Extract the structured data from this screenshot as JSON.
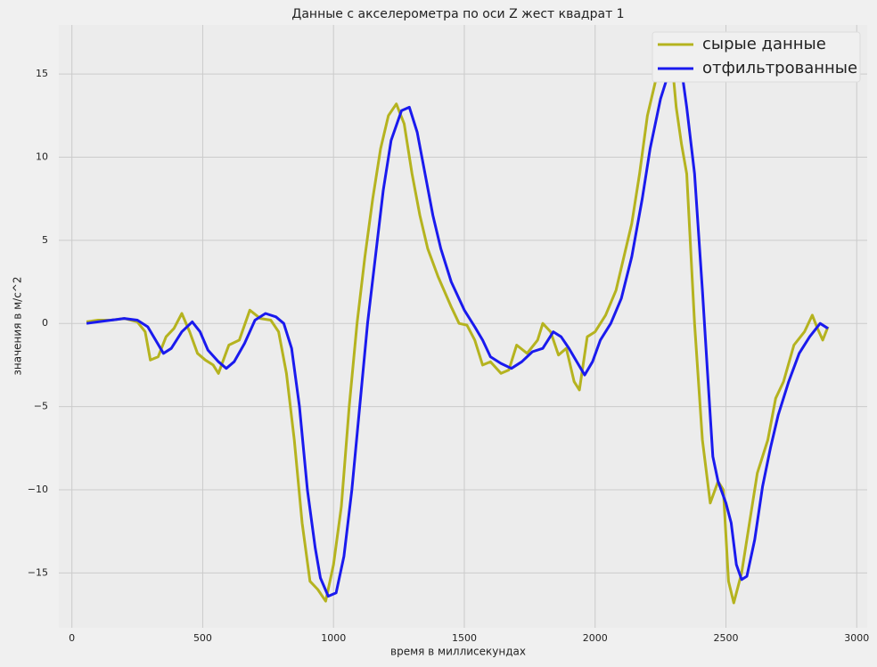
{
  "chart_data": {
    "type": "line",
    "title": "Данные с акселерометра по оси Z жест квадрат 1",
    "x_label": "время в миллисекундах",
    "y_label": "значения в м/с^2",
    "xlim": [
      -50,
      3040
    ],
    "ylim": [
      -18.3,
      17.95
    ],
    "xticks": [
      0,
      500,
      1000,
      1500,
      2000,
      2500,
      3000
    ],
    "yticks": [
      {
        "value": -15,
        "label": "−15"
      },
      {
        "value": -10,
        "label": "−10"
      },
      {
        "value": -5,
        "label": "−5"
      },
      0,
      5,
      10,
      15
    ],
    "grid": true,
    "legend": "upper right",
    "series": [
      {
        "name": "сырые данные",
        "color": "#b5b31f",
        "x": [
          56,
          100,
          150,
          200,
          250,
          280,
          300,
          330,
          360,
          390,
          420,
          450,
          480,
          510,
          540,
          560,
          600,
          640,
          680,
          720,
          760,
          790,
          820,
          850,
          880,
          910,
          940,
          970,
          1000,
          1030,
          1060,
          1090,
          1120,
          1150,
          1180,
          1210,
          1240,
          1270,
          1300,
          1330,
          1360,
          1400,
          1450,
          1480,
          1510,
          1540,
          1570,
          1600,
          1640,
          1670,
          1700,
          1740,
          1780,
          1800,
          1830,
          1860,
          1890,
          1920,
          1940,
          1970,
          2000,
          2040,
          2080,
          2110,
          2140,
          2170,
          2200,
          2230,
          2260,
          2290,
          2310,
          2330,
          2350,
          2380,
          2410,
          2440,
          2470,
          2490,
          2510,
          2530,
          2560,
          2590,
          2620,
          2660,
          2690,
          2720,
          2760,
          2800,
          2830,
          2850,
          2870,
          2890
        ],
        "values": [
          0.1,
          0.2,
          0.2,
          0.3,
          0.1,
          -0.5,
          -2.2,
          -2.0,
          -0.8,
          -0.3,
          0.6,
          -0.5,
          -1.8,
          -2.2,
          -2.5,
          -3.0,
          -1.3,
          -1.0,
          0.8,
          0.3,
          0.2,
          -0.5,
          -3,
          -7,
          -12,
          -15.5,
          -16,
          -16.7,
          -14.5,
          -11,
          -5,
          0,
          4,
          7.5,
          10.5,
          12.5,
          13.2,
          12,
          9,
          6.5,
          4.5,
          2.8,
          1,
          0,
          -0.1,
          -1,
          -2.5,
          -2.3,
          -3,
          -2.8,
          -1.3,
          -1.8,
          -1,
          0,
          -0.5,
          -1.9,
          -1.5,
          -3.5,
          -4,
          -0.8,
          -0.5,
          0.5,
          2,
          4,
          6,
          9,
          12.5,
          14.5,
          15.5,
          16.4,
          13,
          10.8,
          9,
          0,
          -7,
          -10.8,
          -9.5,
          -10,
          -15.5,
          -16.8,
          -15,
          -12,
          -9,
          -7,
          -4.5,
          -3.5,
          -1.3,
          -0.5,
          0.5,
          -0.3,
          -1,
          -0.2
        ]
      },
      {
        "name": "отфильтрованные",
        "color": "#1a1aee",
        "x": [
          56,
          100,
          150,
          200,
          250,
          290,
          320,
          350,
          380,
          420,
          460,
          490,
          520,
          560,
          590,
          620,
          660,
          700,
          740,
          780,
          810,
          840,
          870,
          900,
          930,
          950,
          980,
          1010,
          1040,
          1070,
          1100,
          1130,
          1160,
          1190,
          1220,
          1260,
          1290,
          1320,
          1350,
          1380,
          1410,
          1450,
          1500,
          1540,
          1570,
          1600,
          1640,
          1680,
          1720,
          1760,
          1800,
          1840,
          1870,
          1900,
          1930,
          1960,
          1990,
          2020,
          2060,
          2100,
          2140,
          2180,
          2210,
          2250,
          2280,
          2310,
          2330,
          2350,
          2380,
          2410,
          2430,
          2450,
          2470,
          2500,
          2520,
          2540,
          2560,
          2580,
          2610,
          2640,
          2670,
          2700,
          2740,
          2780,
          2820,
          2860,
          2890
        ],
        "values": [
          0,
          0.1,
          0.2,
          0.3,
          0.2,
          -0.2,
          -1,
          -1.8,
          -1.5,
          -0.5,
          0.1,
          -0.5,
          -1.6,
          -2.3,
          -2.7,
          -2.3,
          -1.2,
          0.2,
          0.6,
          0.4,
          0,
          -1.5,
          -5,
          -10,
          -13.5,
          -15.3,
          -16.4,
          -16.2,
          -14,
          -10,
          -5,
          0,
          4,
          8,
          11,
          12.8,
          13,
          11.5,
          9,
          6.5,
          4.5,
          2.5,
          0.8,
          -0.2,
          -1,
          -2,
          -2.4,
          -2.7,
          -2.3,
          -1.7,
          -1.5,
          -0.5,
          -0.8,
          -1.5,
          -2.3,
          -3.1,
          -2.3,
          -1,
          0,
          1.5,
          4,
          7.5,
          10.5,
          13.5,
          15,
          15.9,
          15.3,
          13,
          9,
          2,
          -3,
          -8,
          -9.5,
          -10.8,
          -12,
          -14.5,
          -15.4,
          -15.2,
          -13,
          -9.8,
          -7.5,
          -5.5,
          -3.5,
          -1.8,
          -0.8,
          0,
          -0.3
        ]
      }
    ]
  }
}
